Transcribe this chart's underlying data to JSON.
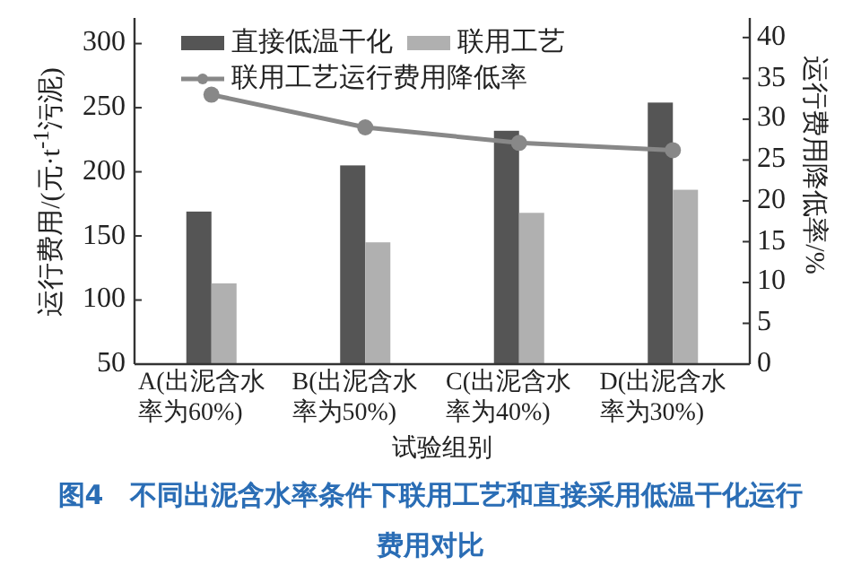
{
  "chart_data": {
    "type": "bar",
    "title": "图4　不同出泥含水率条件下联用工艺和直接采用低温干化运行费用对比",
    "xlabel": "试验组别",
    "ylabel": "运行费用/(元·t$^{-1}$污泥)",
    "y2label": "运行费用降低率/%",
    "categories": [
      "A(出泥含水率为60%)",
      "B(出泥含水率为50%)",
      "C(出泥含水率为40%)",
      "D(出泥含水率为30%)"
    ],
    "series": [
      {
        "name": "直接低温干化",
        "color": "#555555",
        "values": [
          169,
          205,
          232,
          254
        ]
      },
      {
        "name": "联用工艺",
        "color": "#b0b0b0",
        "values": [
          113,
          145,
          168,
          186
        ]
      },
      {
        "name": "联用工艺运行费用降低率",
        "type": "line",
        "axis": "y2",
        "marker": "circle",
        "color": "#888888",
        "values": [
          33,
          29,
          27.1,
          26.2
        ]
      }
    ],
    "ylim": [
      50,
      320
    ],
    "yticks": [
      50,
      100,
      150,
      200,
      250,
      300
    ],
    "y2lim": [
      0,
      42.4
    ],
    "y2ticks": [
      0,
      5,
      10,
      15,
      20,
      25,
      30,
      35,
      40
    ],
    "legend": "top left",
    "grid": false
  }
}
